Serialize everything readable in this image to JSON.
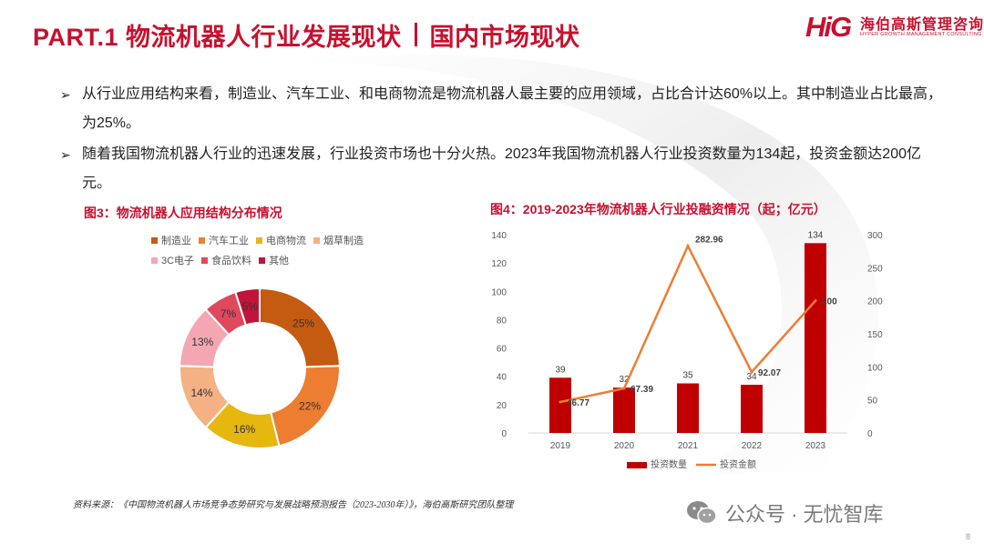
{
  "header": {
    "part": "PART.1 物流机器人行业发展现状",
    "section": "国内市场现状"
  },
  "logo": {
    "mark": "HiG",
    "name_cn": "海伯高斯管理咨询",
    "name_en": "HYPER GROWTH MANAGEMENT CONSULTING"
  },
  "bullets": [
    {
      "arrow": "➢",
      "text": "从行业应用结构来看，制造业、汽车工业、和电商物流是物流机器人最主要的应用领域，占比合计达60%以上。其中制造业占比最高，为25%。"
    },
    {
      "arrow": "➢",
      "text": "随着我国物流机器人行业的迅速发展，行业投资市场也十分火热。2023年我国物流机器人行业投资数量为134起，投资金额达200亿元。"
    }
  ],
  "figure3": {
    "title": "图3：物流机器人应用结构分布情况"
  },
  "figure4": {
    "title": "图4：2019-2023年物流机器人行业投融资情况（起；亿元）"
  },
  "chart_data": [
    {
      "type": "pie",
      "variant": "donut",
      "title": "图3：物流机器人应用结构分布情况",
      "legend_position": "top",
      "categories": [
        "制造业",
        "汽车工业",
        "电商物流",
        "烟草制造",
        "3C电子",
        "食品饮料",
        "其他"
      ],
      "values": [
        25,
        22,
        16,
        14,
        13,
        7,
        5
      ],
      "labels": [
        "25%",
        "22%",
        "16%",
        "14%",
        "13%",
        "7%",
        "5%"
      ],
      "colors": [
        "#c55a11",
        "#ed7d31",
        "#e6b70f",
        "#f4b183",
        "#f4a7b3",
        "#e0485e",
        "#c0143c"
      ]
    },
    {
      "type": "bar",
      "title": "图4：2019-2023年物流机器人行业投融资情况（起；亿元）",
      "categories": [
        "2019",
        "2020",
        "2021",
        "2022",
        "2023"
      ],
      "series": [
        {
          "name": "投资数量",
          "type": "bar",
          "axis": "left",
          "values": [
            39,
            32,
            35,
            34,
            134
          ],
          "labels": [
            "39",
            "32",
            "35",
            "34",
            "134"
          ],
          "color": "#c00000"
        },
        {
          "name": "投资金额",
          "type": "line",
          "axis": "right",
          "values": [
            46.77,
            67.39,
            282.96,
            92.07,
            200
          ],
          "labels": [
            "46.77",
            "67.39",
            "282.96",
            "92.07",
            "200"
          ],
          "color": "#ed7d31"
        }
      ],
      "ylim_left": [
        0,
        140
      ],
      "yticks_left": [
        "0",
        "20",
        "40",
        "60",
        "80",
        "100",
        "120",
        "140"
      ],
      "ylim_right": [
        0,
        300
      ],
      "yticks_right": [
        "0",
        "50",
        "100",
        "150",
        "200",
        "250",
        "300"
      ],
      "legend_position": "bottom",
      "grid": false
    }
  ],
  "footer": {
    "source": "资料来源：《中国物流机器人市场竞争态势研究与发展战略预测报告（2023-2030年）》，海伯高斯研究团队整理",
    "watermark": "公众号 · 无忧智库",
    "page": "8"
  },
  "colors": {
    "brand_red": "#c8102e"
  }
}
